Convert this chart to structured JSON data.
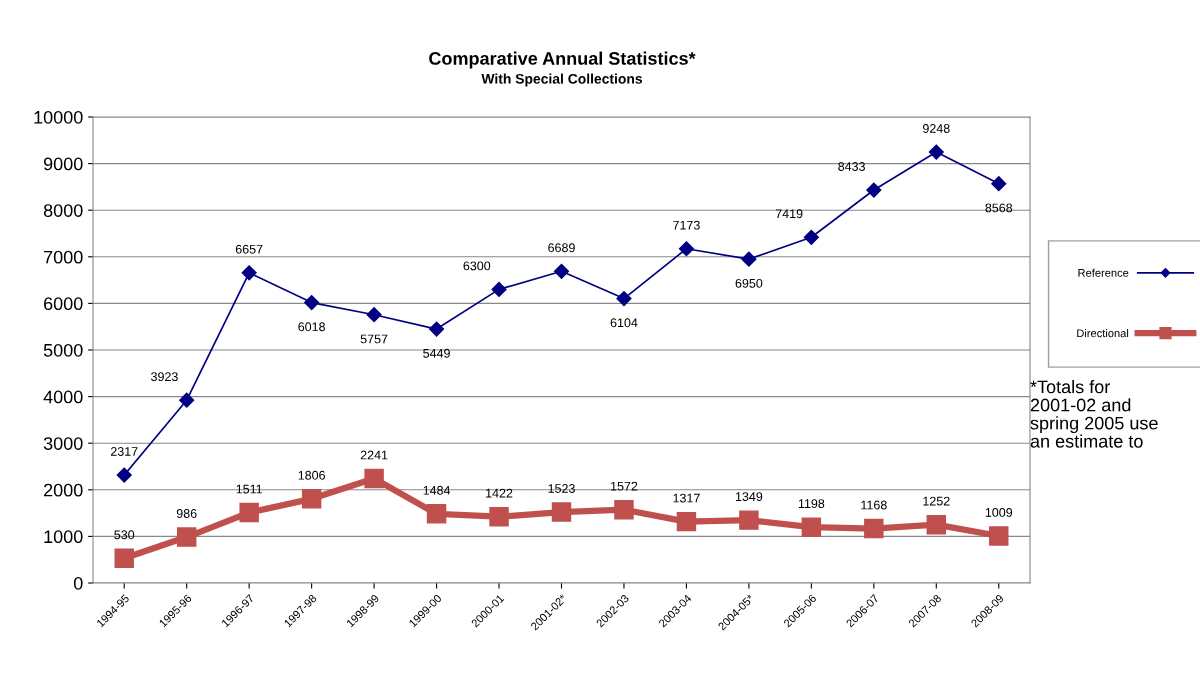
{
  "chart_data": {
    "type": "line",
    "title": "Comparative Annual Statistics*",
    "subtitle": "With Special Collections",
    "categories": [
      "1994-95",
      "1995-96",
      "1996-97",
      "1997-98",
      "1998-99",
      "1999-00",
      "2000-01",
      "2001-02*",
      "2002-03",
      "2003-04",
      "2004-05*",
      "2005-06",
      "2006-07",
      "2007-08",
      "2008-09"
    ],
    "series": [
      {
        "name": "Reference",
        "color": "#000080",
        "marker": "diamond",
        "values": [
          2317,
          3923,
          6657,
          6018,
          5757,
          5449,
          6300,
          6689,
          6104,
          7173,
          6950,
          7419,
          8433,
          9248,
          8568
        ]
      },
      {
        "name": "Directional",
        "color": "#c0504d",
        "marker": "square",
        "values": [
          530,
          986,
          1511,
          1806,
          2241,
          1484,
          1422,
          1523,
          1572,
          1317,
          1349,
          1198,
          1168,
          1252,
          1009
        ]
      }
    ],
    "ylim": [
      0,
      10000
    ],
    "yticks": [
      0,
      1000,
      2000,
      3000,
      4000,
      5000,
      6000,
      7000,
      8000,
      9000,
      10000
    ],
    "grid": "y",
    "legend": "right",
    "data_labels": true,
    "annotations": [
      "*Totals for\n2001-02 and\nspring 2005 use\nan estimate to"
    ]
  }
}
